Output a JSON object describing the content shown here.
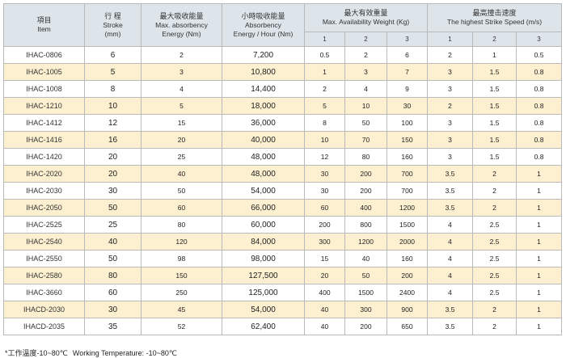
{
  "headers": {
    "item_zh": "項目",
    "item_en": "Item",
    "stroke_zh": "行 程",
    "stroke_en": "Stroke",
    "stroke_unit": "(mm)",
    "max_energy_zh": "最大吸收能量",
    "max_energy_en": "Max. absorbency",
    "max_energy_unit": "Energy (Nm)",
    "hour_energy_zh": "小時吸收能量",
    "hour_energy_en": "Absorbency",
    "hour_energy_unit": "Energy / Hour (Nm)",
    "weight_zh": "最大有效重量",
    "weight_en": "Max. Availability Weight (Kg)",
    "speed_zh": "最高撞击速度",
    "speed_en": "The highest Strike Speed (m/s)",
    "sub": [
      "1",
      "2",
      "3",
      "1",
      "2",
      "3"
    ]
  },
  "rows": [
    {
      "model": "IHAC-0806",
      "stroke": "6",
      "energy": "2",
      "hour": "7,200",
      "w": [
        "0.5",
        "2",
        "6"
      ],
      "s": [
        "2",
        "1",
        "0.5"
      ]
    },
    {
      "model": "IHAC-1005",
      "stroke": "5",
      "energy": "3",
      "hour": "10,800",
      "w": [
        "1",
        "3",
        "7"
      ],
      "s": [
        "3",
        "1.5",
        "0.8"
      ]
    },
    {
      "model": "IHAC-1008",
      "stroke": "8",
      "energy": "4",
      "hour": "14,400",
      "w": [
        "2",
        "4",
        "9"
      ],
      "s": [
        "3",
        "1.5",
        "0.8"
      ]
    },
    {
      "model": "IHAC-1210",
      "stroke": "10",
      "energy": "5",
      "hour": "18,000",
      "w": [
        "5",
        "10",
        "30"
      ],
      "s": [
        "2",
        "1.5",
        "0.8"
      ]
    },
    {
      "model": "IHAC-1412",
      "stroke": "12",
      "energy": "15",
      "hour": "36,000",
      "w": [
        "8",
        "50",
        "100"
      ],
      "s": [
        "3",
        "1.5",
        "0.8"
      ]
    },
    {
      "model": "IHAC-1416",
      "stroke": "16",
      "energy": "20",
      "hour": "40,000",
      "w": [
        "10",
        "70",
        "150"
      ],
      "s": [
        "3",
        "1.5",
        "0.8"
      ]
    },
    {
      "model": "IHAC-1420",
      "stroke": "20",
      "energy": "25",
      "hour": "48,000",
      "w": [
        "12",
        "80",
        "160"
      ],
      "s": [
        "3",
        "1.5",
        "0.8"
      ]
    },
    {
      "model": "IHAC-2020",
      "stroke": "20",
      "energy": "40",
      "hour": "48,000",
      "w": [
        "30",
        "200",
        "700"
      ],
      "s": [
        "3.5",
        "2",
        "1"
      ]
    },
    {
      "model": "IHAC-2030",
      "stroke": "30",
      "energy": "50",
      "hour": "54,000",
      "w": [
        "30",
        "200",
        "700"
      ],
      "s": [
        "3.5",
        "2",
        "1"
      ]
    },
    {
      "model": "IHAC-2050",
      "stroke": "50",
      "energy": "60",
      "hour": "66,000",
      "w": [
        "60",
        "400",
        "1200"
      ],
      "s": [
        "3.5",
        "2",
        "1"
      ]
    },
    {
      "model": "IHAC-2525",
      "stroke": "25",
      "energy": "80",
      "hour": "60,000",
      "w": [
        "200",
        "800",
        "1500"
      ],
      "s": [
        "4",
        "2.5",
        "1"
      ]
    },
    {
      "model": "IHAC-2540",
      "stroke": "40",
      "energy": "120",
      "hour": "84,000",
      "w": [
        "300",
        "1200",
        "2000"
      ],
      "s": [
        "4",
        "2.5",
        "1"
      ]
    },
    {
      "model": "IHAC-2550",
      "stroke": "50",
      "energy": "98",
      "hour": "98,000",
      "w": [
        "15",
        "40",
        "160"
      ],
      "s": [
        "4",
        "2.5",
        "1"
      ]
    },
    {
      "model": "IHAC-2580",
      "stroke": "80",
      "energy": "150",
      "hour": "127,500",
      "w": [
        "20",
        "50",
        "200"
      ],
      "s": [
        "4",
        "2.5",
        "1"
      ]
    },
    {
      "model": "IHAC-3660",
      "stroke": "60",
      "energy": "250",
      "hour": "125,000",
      "w": [
        "400",
        "1500",
        "2400"
      ],
      "s": [
        "4",
        "2.5",
        "1"
      ]
    },
    {
      "model": "IHACD-2030",
      "stroke": "30",
      "energy": "45",
      "hour": "54,000",
      "w": [
        "40",
        "300",
        "900"
      ],
      "s": [
        "3.5",
        "2",
        "1"
      ]
    },
    {
      "model": "IHACD-2035",
      "stroke": "35",
      "energy": "52",
      "hour": "62,400",
      "w": [
        "40",
        "200",
        "650"
      ],
      "s": [
        "3.5",
        "2",
        "1"
      ]
    }
  ],
  "footnote": {
    "zh": "*工作溫度-10~80℃",
    "en": "Working Temperature: -10~80℃"
  },
  "colors": {
    "header_bg": "#dde4ea",
    "alt_row_bg": "#fdf0d0",
    "border": "#b9b9b9"
  }
}
